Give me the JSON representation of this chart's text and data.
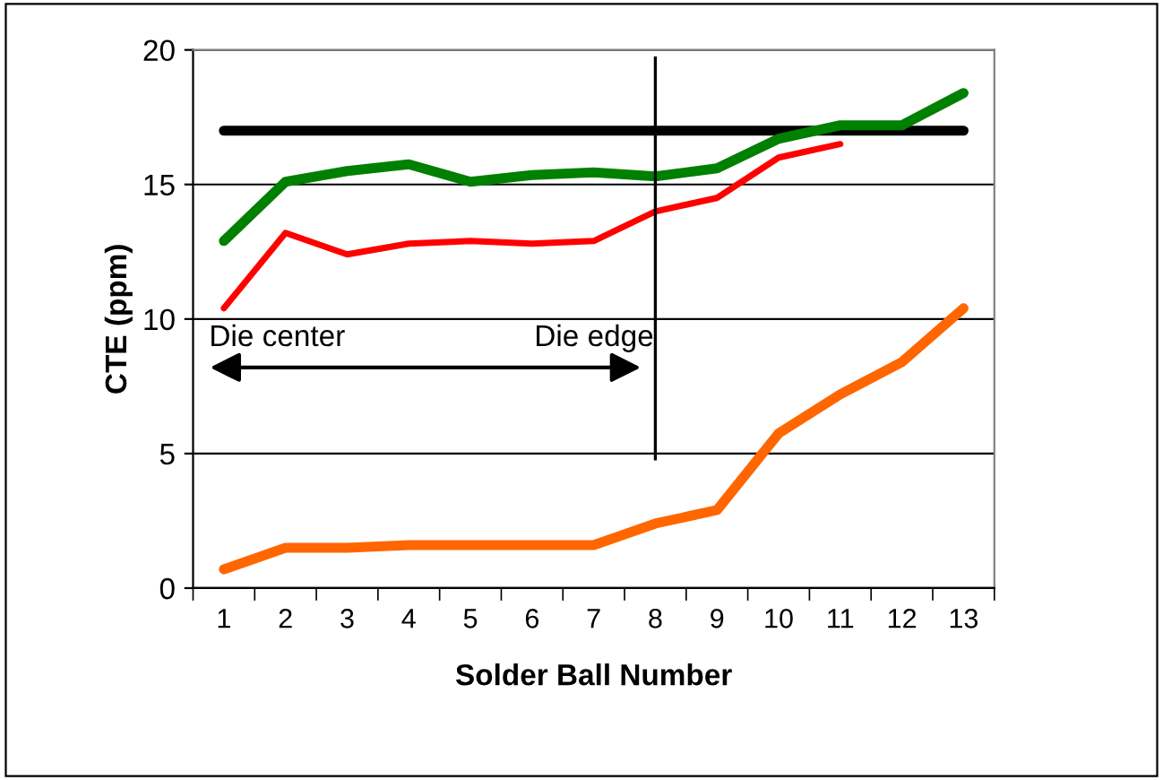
{
  "chart_data": {
    "type": "line",
    "xlabel": "Solder Ball Number",
    "ylabel": "CTE (ppm)",
    "categories": [
      "1",
      "2",
      "3",
      "4",
      "5",
      "6",
      "7",
      "8",
      "9",
      "10",
      "11",
      "12",
      "13"
    ],
    "series": [
      {
        "color": "#000000",
        "values": [
          17,
          17,
          17,
          17,
          17,
          17,
          17,
          17,
          17,
          17,
          17,
          17,
          17
        ]
      },
      {
        "color": "#008000",
        "values": [
          12.9,
          15.1,
          15.5,
          15.75,
          15.1,
          15.35,
          15.45,
          15.3,
          15.6,
          16.7,
          17.2,
          17.2,
          18.4
        ]
      },
      {
        "color": "#ff0000",
        "values": [
          10.4,
          13.2,
          12.4,
          12.8,
          12.9,
          12.8,
          12.9,
          14.0,
          14.5,
          16.0,
          16.5,
          null,
          null
        ]
      },
      {
        "color": "#ff6600",
        "values": [
          0.7,
          1.5,
          1.5,
          1.6,
          1.6,
          1.6,
          1.6,
          2.4,
          2.9,
          5.75,
          7.2,
          8.4,
          10.4
        ]
      }
    ],
    "ylim": [
      0,
      20
    ],
    "yticks": [
      0,
      5,
      10,
      15,
      20
    ],
    "grid": "y",
    "legend": false,
    "marker": "none",
    "ref_lines": [
      {
        "axis": "x",
        "value": "8",
        "color": "#000000"
      }
    ],
    "annotations": [
      "Die center",
      "Die edge"
    ]
  }
}
